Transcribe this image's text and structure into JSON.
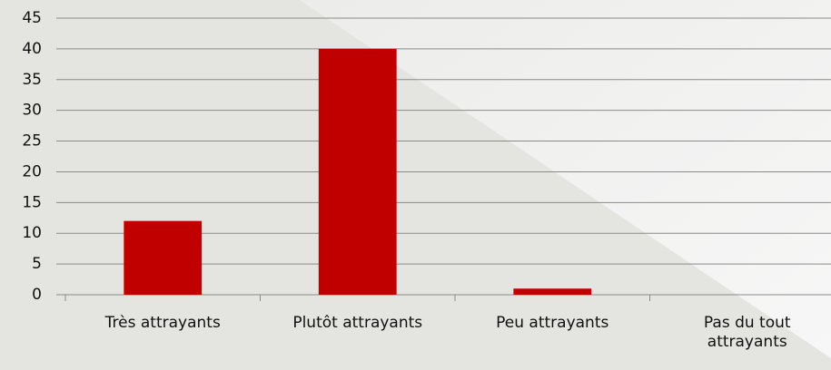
{
  "chart_data": {
    "type": "bar",
    "categories": [
      "Très attrayants",
      "Plutôt attrayants",
      "Peu attrayants",
      "Pas du tout attrayants"
    ],
    "values": [
      12,
      40,
      1,
      0
    ],
    "color": "#c00000",
    "ylim": [
      0,
      45
    ],
    "yticks": [
      0,
      5,
      10,
      15,
      20,
      25,
      30,
      35,
      40,
      45
    ],
    "grid": true
  }
}
